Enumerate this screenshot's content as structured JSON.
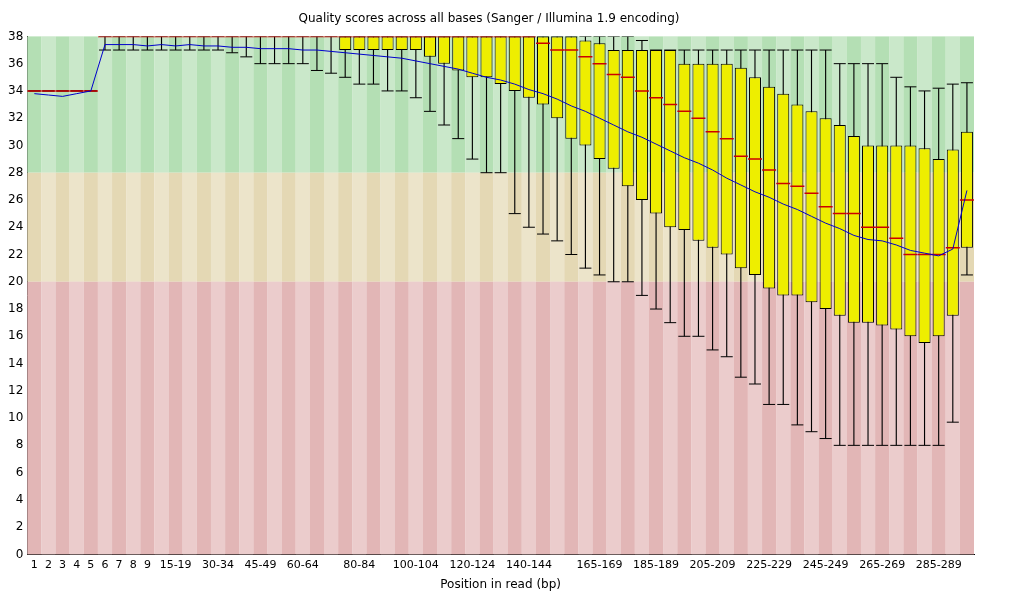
{
  "chart_data": {
    "type": "box",
    "title": "Quality scores across all bases (Sanger / Illumina 1.9 encoding)",
    "x_label": "Position in read (bp)",
    "categories": [
      "1",
      "2",
      "3",
      "4",
      "5",
      "6",
      "7",
      "8",
      "9",
      null,
      "15-19",
      null,
      null,
      "30-34",
      null,
      null,
      "45-49",
      null,
      null,
      "60-64",
      null,
      null,
      null,
      "80-84",
      null,
      null,
      null,
      "100-104",
      null,
      null,
      null,
      "120-124",
      null,
      null,
      null,
      "140-144",
      null,
      null,
      null,
      null,
      "165-169",
      null,
      null,
      null,
      "185-189",
      null,
      null,
      null,
      "205-209",
      null,
      null,
      null,
      "225-229",
      null,
      null,
      null,
      "245-249",
      null,
      null,
      null,
      "265-269",
      null,
      null,
      null,
      "285-289",
      null,
      null
    ],
    "boxes": {
      "low": [
        34,
        34,
        34,
        34,
        34,
        37,
        37,
        37,
        37,
        37,
        37,
        37,
        37,
        37,
        36.8,
        36.5,
        36,
        36,
        36,
        36,
        35.5,
        35.3,
        35,
        34.5,
        34.5,
        34,
        34,
        33.5,
        32.5,
        31.5,
        30.5,
        29,
        28,
        28,
        25,
        24,
        23.5,
        23,
        22,
        21,
        20.5,
        20,
        20,
        19,
        18,
        17,
        16,
        16,
        15,
        14.5,
        13,
        12.5,
        11,
        11,
        9.5,
        9,
        8.5,
        8,
        8,
        8,
        8,
        8,
        8,
        8,
        8,
        9.7,
        20.5
      ],
      "q1": [
        34,
        34,
        34,
        34,
        34,
        38,
        38,
        38,
        38,
        38,
        38,
        38,
        38,
        38,
        38,
        38,
        38,
        38,
        38,
        38,
        38,
        38,
        37,
        37,
        37,
        37,
        37,
        37,
        36.5,
        36,
        35.5,
        35,
        35,
        34.5,
        34,
        33.5,
        33,
        32,
        30.5,
        30,
        29,
        28.3,
        27,
        26,
        25,
        24,
        23.8,
        23,
        22.5,
        22,
        21,
        20.5,
        19.5,
        19,
        19,
        18.5,
        18,
        17.5,
        17,
        17,
        16.8,
        16.5,
        16,
        15.5,
        16,
        17.5,
        22.5
      ],
      "q3": [
        34,
        34,
        34,
        34,
        34,
        38,
        38,
        38,
        38,
        38,
        38,
        38,
        38,
        38,
        38,
        38,
        38,
        38,
        38,
        38,
        38,
        38,
        38,
        38,
        38,
        38,
        38,
        38,
        38,
        38,
        38,
        38,
        38,
        38,
        38,
        38,
        38,
        38,
        38,
        37.7,
        37.5,
        37,
        37,
        37,
        37,
        37,
        36,
        36,
        36,
        36,
        35.7,
        35,
        34.3,
        33.8,
        33,
        32.5,
        32,
        31.5,
        30.7,
        30,
        30,
        30,
        30,
        29.8,
        29,
        29.7,
        31
      ],
      "high": [
        34,
        34,
        34,
        34,
        34,
        38,
        38,
        38,
        38,
        38,
        38,
        38,
        38,
        38,
        38,
        38,
        38,
        38,
        38,
        38,
        38,
        38,
        38,
        38,
        38,
        38,
        38,
        38,
        38,
        38,
        38,
        38,
        38,
        38,
        38,
        38,
        38,
        38,
        38,
        38,
        38,
        38,
        38,
        37.7,
        37,
        37,
        37,
        37,
        37,
        37,
        37,
        37,
        37,
        37,
        37,
        37,
        37,
        36,
        36,
        36,
        36,
        35,
        34.3,
        34,
        34.2,
        34.5,
        34.6
      ],
      "color": "#eeee00"
    },
    "median": {
      "values": [
        34,
        34,
        34,
        34,
        34,
        38,
        38,
        38,
        38,
        38,
        38,
        38,
        38,
        38,
        38,
        38,
        38,
        38,
        38,
        38,
        38,
        38,
        38,
        38,
        38,
        38,
        38,
        38,
        38,
        38,
        38,
        38,
        38,
        38,
        38,
        38,
        37.5,
        37,
        37,
        36.5,
        36,
        35.2,
        35,
        34,
        33.5,
        33,
        32.5,
        32,
        31,
        30.5,
        29.2,
        29,
        28.2,
        27.2,
        27,
        26.5,
        25.5,
        25,
        25,
        24,
        24,
        23.2,
        22,
        22,
        22,
        22.5,
        26
      ],
      "color": "#cc0000",
      "marker": "line"
    },
    "mean": {
      "values": [
        33.8,
        33.7,
        33.6,
        33.8,
        34.0,
        37.4,
        37.4,
        37.4,
        37.3,
        37.4,
        37.3,
        37.4,
        37.3,
        37.3,
        37.2,
        37.2,
        37.1,
        37.1,
        37.1,
        37.0,
        37.0,
        36.9,
        36.8,
        36.7,
        36.6,
        36.5,
        36.4,
        36.2,
        36.0,
        35.8,
        35.6,
        35.3,
        35.0,
        34.8,
        34.5,
        34.1,
        33.8,
        33.4,
        32.9,
        32.5,
        32.0,
        31.5,
        31.0,
        30.6,
        30.1,
        29.6,
        29.1,
        28.7,
        28.2,
        27.6,
        27.1,
        26.6,
        26.2,
        25.7,
        25.3,
        24.8,
        24.3,
        23.9,
        23.4,
        23.1,
        23.0,
        22.7,
        22.3,
        22.1,
        21.9,
        22.4,
        26.7
      ],
      "color": "#0000cc",
      "type": "line"
    },
    "zones": [
      {
        "from": 28,
        "to": 38,
        "color": "#b4dfb4"
      },
      {
        "from": 20,
        "to": 28,
        "color": "#e4d8b4"
      },
      {
        "from": 0,
        "to": 20,
        "color": "#e2b6b6"
      }
    ],
    "ylim": [
      0,
      38
    ],
    "yticks": [
      0,
      2,
      4,
      6,
      8,
      10,
      12,
      14,
      16,
      18,
      20,
      22,
      24,
      26,
      28,
      30,
      32,
      34,
      36,
      38
    ],
    "grid": false
  }
}
